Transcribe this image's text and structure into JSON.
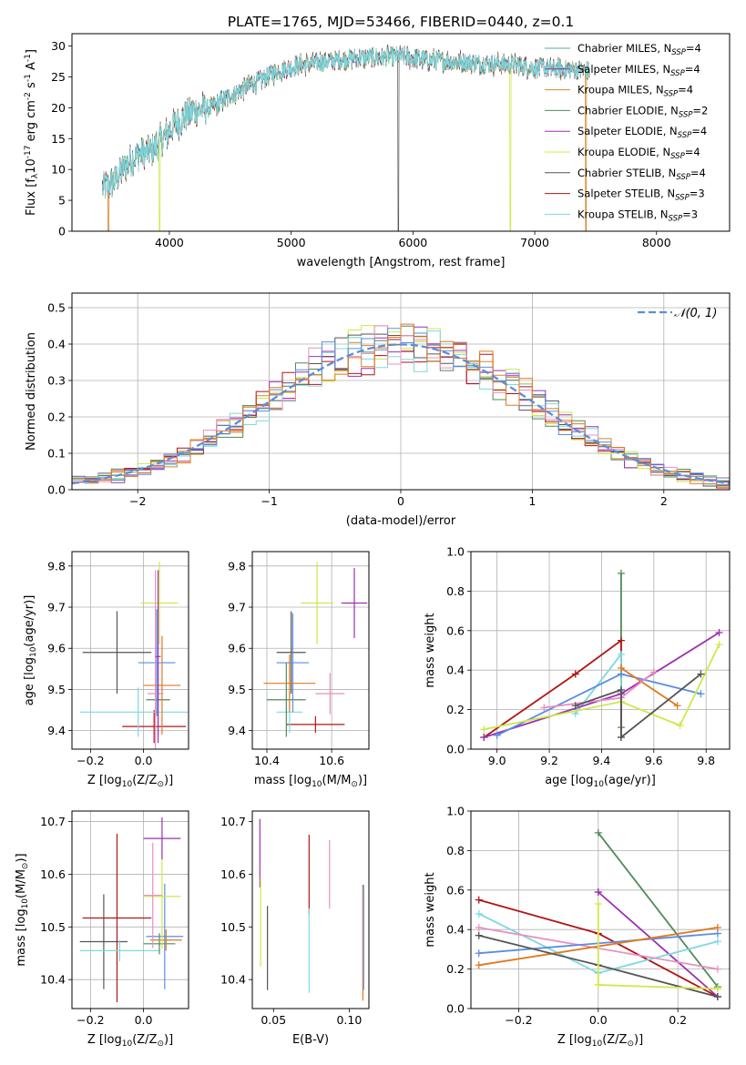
{
  "title": "PLATE=1765, MJD=53466, FIBERID=0440, z=0.1",
  "colors": {
    "Chabrier MILES": "#5fa89a",
    "Salpeter MILES": "#7d3c98",
    "Kroupa MILES": "#d4882a",
    "Chabrier ELODIE": "#4f8a5a",
    "Salpeter ELODIE": "#9b30b0",
    "Kroupa ELODIE": "#cde84a",
    "Chabrier STELIB": "#555555",
    "Salpeter STELIB": "#b01515",
    "Kroupa STELIB": "#7ed8e0",
    "extra_pink": "#e890c0",
    "extra_blue": "#5b8ee0",
    "extra_orange": "#e07820",
    "gauss": "#5b8ed6"
  },
  "chart_data": [
    {
      "id": "spectrum",
      "type": "line",
      "xlabel": "wavelength [Angstrom, rest frame]",
      "ylabel": "Flux [f$_\\lambda$10$^{-17}$ erg cm$^{-2}$ s$^{-1}$ A$^{-1}$]",
      "xlim": [
        3200,
        8600
      ],
      "ylim": [
        0,
        32
      ],
      "xticks": [
        "4000",
        "5000",
        "6000",
        "7000",
        "8000"
      ],
      "yticks": [
        "0",
        "5",
        "10",
        "15",
        "20",
        "25",
        "30"
      ],
      "legend": [
        {
          "label": "Chabrier MILES, N",
          "sub": "SSP",
          "n": "=4",
          "series": "Chabrier MILES"
        },
        {
          "label": "Salpeter MILES, N",
          "sub": "SSP",
          "n": "=4",
          "series": "Salpeter MILES"
        },
        {
          "label": "Kroupa MILES, N",
          "sub": "SSP",
          "n": "=4",
          "series": "Kroupa MILES"
        },
        {
          "label": "Chabrier ELODIE, N",
          "sub": "SSP",
          "n": "=2",
          "series": "Chabrier ELODIE"
        },
        {
          "label": "Salpeter ELODIE, N",
          "sub": "SSP",
          "n": "=4",
          "series": "Salpeter ELODIE"
        },
        {
          "label": "Kroupa ELODIE, N",
          "sub": "SSP",
          "n": "=4",
          "series": "Kroupa ELODIE"
        },
        {
          "label": "Chabrier STELIB, N",
          "sub": "SSP",
          "n": "=4",
          "series": "Chabrier STELIB"
        },
        {
          "label": "Salpeter STELIB, N",
          "sub": "SSP",
          "n": "=3",
          "series": "Salpeter STELIB"
        },
        {
          "label": "Kroupa STELIB, N",
          "sub": "SSP",
          "n": "=3",
          "series": "Kroupa STELIB"
        }
      ],
      "legend_position": "upper right",
      "continuum": [
        [
          3450,
          7
        ],
        [
          3550,
          8
        ],
        [
          3650,
          11
        ],
        [
          3750,
          12.5
        ],
        [
          3850,
          13
        ],
        [
          3950,
          15
        ],
        [
          4050,
          17.5
        ],
        [
          4200,
          19.5
        ],
        [
          4350,
          20
        ],
        [
          4500,
          22
        ],
        [
          4700,
          24
        ],
        [
          4900,
          26
        ],
        [
          5100,
          27
        ],
        [
          5300,
          27.5
        ],
        [
          5500,
          28
        ],
        [
          5700,
          28.2
        ],
        [
          5900,
          28.3
        ],
        [
          6100,
          27.8
        ],
        [
          6300,
          27.5
        ],
        [
          6500,
          27.3
        ],
        [
          6800,
          27
        ],
        [
          7000,
          26.5
        ],
        [
          7200,
          26.3
        ],
        [
          7450,
          26
        ]
      ],
      "observed_range": [
        3450,
        7450
      ],
      "glitches": [
        {
          "x": 3500,
          "series": "Kroupa MILES"
        },
        {
          "x": 3920,
          "series": "Kroupa ELODIE"
        },
        {
          "x": 5880,
          "series": "Chabrier STELIB"
        },
        {
          "x": 6800,
          "series": "Kroupa ELODIE"
        },
        {
          "x": 7420,
          "series": "Kroupa MILES"
        }
      ]
    },
    {
      "id": "residuals",
      "type": "step-histogram",
      "xlabel": "(data-model)/error",
      "ylabel": "Normed distribution",
      "xlim": [
        -2.5,
        2.5
      ],
      "ylim": [
        0,
        0.54
      ],
      "xticks": [
        "−2",
        "−1",
        "0",
        "1",
        "2"
      ],
      "yticks": [
        "0.0",
        "0.1",
        "0.2",
        "0.3",
        "0.4",
        "0.5"
      ],
      "grid": true,
      "legend": {
        "label": "𝒩(0, 1)",
        "position": "upper right"
      },
      "bin_width": 0.1,
      "max_value": 0.515
    },
    {
      "id": "age-vs-Z",
      "type": "errorbar",
      "xlabel": "Z [log$_{10}$(Z/Z$_\\odot$)]",
      "ylabel": "age  [log$_{10}$(age/yr)]",
      "xlim": [
        -0.27,
        0.17
      ],
      "ylim": [
        9.355,
        9.835
      ],
      "xticks": [
        "−0.2",
        "0.0"
      ],
      "yticks": [
        "9.4",
        "9.5",
        "9.6",
        "9.7",
        "9.8"
      ],
      "grid": true,
      "points": [
        {
          "x": 0.04,
          "xerr": 0.12,
          "y": 9.41,
          "yerr": 0.04,
          "c": "Salpeter STELIB"
        },
        {
          "x": -0.1,
          "xerr": 0.13,
          "y": 9.59,
          "yerr": 0.1,
          "c": "Chabrier STELIB"
        },
        {
          "x": -0.02,
          "xerr": 0.22,
          "y": 9.445,
          "yerr": 0.06,
          "c": "Kroupa STELIB"
        },
        {
          "x": 0.055,
          "xerr": 0.045,
          "y": 9.475,
          "yerr": 0.09,
          "c": "Chabrier ELODIE"
        },
        {
          "x": 0.07,
          "xerr": 0.07,
          "y": 9.51,
          "yerr": 0.12,
          "c": "extra_orange"
        },
        {
          "x": 0.05,
          "xerr": 0.07,
          "y": 9.565,
          "yerr": 0.13,
          "c": "extra_blue"
        },
        {
          "x": 0.06,
          "xerr": 0.07,
          "y": 9.71,
          "yerr": 0.1,
          "c": "Kroupa ELODIE"
        },
        {
          "x": 0.045,
          "xerr": 0.03,
          "y": 9.49,
          "yerr": 0.3,
          "c": "extra_pink"
        },
        {
          "x": 0.055,
          "xerr": 0.01,
          "y": 9.58,
          "yerr": 0.21,
          "c": "Salpeter ELODIE"
        }
      ]
    },
    {
      "id": "age-vs-mass",
      "type": "errorbar",
      "xlabel": "mass [log$_{10}$(M/M$_\\odot$)]",
      "ylabel": "",
      "xlim": [
        10.355,
        10.715
      ],
      "ylim": [
        9.355,
        9.835
      ],
      "xticks": [
        "10.4",
        "10.6"
      ],
      "yticks": [
        "9.4",
        "9.5",
        "9.6",
        "9.7",
        "9.8"
      ],
      "grid": true,
      "points": [
        {
          "x": 10.55,
          "xerr": 0.09,
          "y": 9.415,
          "yerr": 0.02,
          "c": "Salpeter STELIB"
        },
        {
          "x": 10.475,
          "xerr": 0.045,
          "y": 9.59,
          "yerr": 0.1,
          "c": "Chabrier STELIB"
        },
        {
          "x": 10.47,
          "xerr": 0.04,
          "y": 9.445,
          "yerr": 0.05,
          "c": "Kroupa STELIB"
        },
        {
          "x": 10.46,
          "xerr": 0.06,
          "y": 9.475,
          "yerr": 0.09,
          "c": "Chabrier ELODIE"
        },
        {
          "x": 10.47,
          "xerr": 0.08,
          "y": 9.515,
          "yerr": 0.07,
          "c": "extra_orange"
        },
        {
          "x": 10.48,
          "xerr": 0.05,
          "y": 9.565,
          "yerr": 0.12,
          "c": "extra_blue"
        },
        {
          "x": 10.555,
          "xerr": 0.05,
          "y": 9.71,
          "yerr": 0.1,
          "c": "Kroupa ELODIE"
        },
        {
          "x": 10.595,
          "xerr": 0.045,
          "y": 9.49,
          "yerr": 0.05,
          "c": "extra_pink"
        },
        {
          "x": 10.67,
          "xerr": 0.04,
          "y": 9.71,
          "yerr": 0.085,
          "c": "Salpeter ELODIE"
        }
      ]
    },
    {
      "id": "weight-vs-age",
      "type": "line",
      "xlabel": "age  [log$_{10}$(age/yr)]",
      "ylabel": "mass weight",
      "xlim": [
        8.9,
        9.89
      ],
      "ylim": [
        0,
        1
      ],
      "xticks": [
        "9.0",
        "9.2",
        "9.4",
        "9.6",
        "9.8"
      ],
      "yticks": [
        "0.0",
        "0.2",
        "0.4",
        "0.6",
        "0.8",
        "1.0"
      ],
      "grid": true,
      "series": [
        {
          "c": "Chabrier ELODIE",
          "x": [
            9.475,
            9.475
          ],
          "y": [
            0.89,
            0.11
          ]
        },
        {
          "c": "Salpeter STELIB",
          "x": [
            8.95,
            9.3,
            9.475,
            9.475
          ],
          "y": [
            0.06,
            0.38,
            0.55,
            0.06
          ]
        },
        {
          "c": "Kroupa STELIB",
          "x": [
            9.3,
            9.475,
            9.475
          ],
          "y": [
            0.18,
            0.48,
            0.29
          ]
        },
        {
          "c": "Salpeter ELODIE",
          "x": [
            8.95,
            9.475,
            9.85
          ],
          "y": [
            0.06,
            0.28,
            0.59
          ]
        },
        {
          "c": "extra_blue",
          "x": [
            9.0,
            9.475,
            9.78
          ],
          "y": [
            0.07,
            0.38,
            0.28
          ]
        },
        {
          "c": "extra_orange",
          "x": [
            9.475,
            9.69
          ],
          "y": [
            0.41,
            0.22
          ]
        },
        {
          "c": "extra_pink",
          "x": [
            9.18,
            9.475,
            9.6
          ],
          "y": [
            0.21,
            0.26,
            0.39
          ]
        },
        {
          "c": "Kroupa ELODIE",
          "x": [
            8.95,
            9.475,
            9.7,
            9.85
          ],
          "y": [
            0.1,
            0.24,
            0.12,
            0.53
          ]
        },
        {
          "c": "Chabrier STELIB",
          "x": [
            9.3,
            9.475,
            9.475,
            9.78
          ],
          "y": [
            0.22,
            0.3,
            0.06,
            0.38
          ]
        }
      ]
    },
    {
      "id": "mass-vs-Z",
      "type": "errorbar",
      "xlabel": "Z [log$_{10}$(Z/Z$_\\odot$)]",
      "ylabel": "mass [log$_{10}$(M/M$_\\odot$)]",
      "xlim": [
        -0.27,
        0.17
      ],
      "ylim": [
        10.345,
        10.72
      ],
      "xticks": [
        "−0.2",
        "0.0"
      ],
      "yticks": [
        "10.4",
        "10.5",
        "10.6",
        "10.7"
      ],
      "grid": true,
      "points": [
        {
          "x": -0.1,
          "xerr": 0.13,
          "y": 10.517,
          "yerr": 0.16,
          "c": "Salpeter STELIB"
        },
        {
          "x": -0.15,
          "xerr": 0.09,
          "y": 10.472,
          "yerr": 0.09,
          "c": "Chabrier STELIB"
        },
        {
          "x": -0.09,
          "xerr": 0.15,
          "y": 10.455,
          "yerr": 0.02,
          "c": "Kroupa STELIB"
        },
        {
          "x": 0.06,
          "xerr": 0.06,
          "y": 10.468,
          "yerr": 0.02,
          "c": "Chabrier ELODIE"
        },
        {
          "x": 0.085,
          "xerr": 0.06,
          "y": 10.475,
          "yerr": 0.02,
          "c": "extra_orange"
        },
        {
          "x": 0.08,
          "xerr": 0.07,
          "y": 10.482,
          "yerr": 0.1,
          "c": "extra_blue"
        },
        {
          "x": 0.07,
          "xerr": 0.07,
          "y": 10.558,
          "yerr": 0.1,
          "c": "Kroupa ELODIE"
        },
        {
          "x": 0.035,
          "xerr": 0.035,
          "y": 10.56,
          "yerr": 0.1,
          "c": "extra_pink"
        },
        {
          "x": 0.07,
          "xerr": 0.07,
          "y": 10.668,
          "yerr": 0.04,
          "c": "Salpeter ELODIE"
        }
      ]
    },
    {
      "id": "mass-vs-ebv",
      "type": "errorbar",
      "xlabel": "E(B-V)",
      "ylabel": "",
      "xlim": [
        0.036,
        0.113
      ],
      "ylim": [
        10.345,
        10.72
      ],
      "xticks": [
        "0.05",
        "0.10"
      ],
      "yticks": [
        "10.4",
        "10.5",
        "10.6",
        "10.7"
      ],
      "grid": false,
      "points": [
        {
          "x": 0.041,
          "y": 10.64,
          "yerr": 0.065,
          "c": "Salpeter ELODIE"
        },
        {
          "x": 0.0415,
          "y": 10.51,
          "yerr": 0.085,
          "c": "Kroupa ELODIE"
        },
        {
          "x": 0.046,
          "y": 10.46,
          "yerr": 0.08,
          "c": "Chabrier STELIB"
        },
        {
          "x": 0.0735,
          "y": 10.6,
          "yerr": 0.075,
          "c": "Salpeter STELIB"
        },
        {
          "x": 0.0735,
          "y": 10.455,
          "yerr": 0.08,
          "c": "Kroupa STELIB"
        },
        {
          "x": 0.087,
          "y": 10.6,
          "yerr": 0.065,
          "c": "extra_pink"
        },
        {
          "x": 0.109,
          "y": 10.47,
          "yerr": 0.11,
          "c": "extra_orange"
        },
        {
          "x": 0.1095,
          "y": 10.48,
          "yerr": 0.1,
          "c": "extra_blue"
        }
      ]
    },
    {
      "id": "weight-vs-Z",
      "type": "line",
      "xlabel": "Z [log$_{10}$(Z/Z$_\\odot$)]",
      "ylabel": "mass weight",
      "xlim": [
        -0.32,
        0.33
      ],
      "ylim": [
        0,
        1
      ],
      "xticks": [
        "−0.2",
        "0.0",
        "0.2"
      ],
      "yticks": [
        "0.0",
        "0.2",
        "0.4",
        "0.6",
        "0.8",
        "1.0"
      ],
      "grid": true,
      "series": [
        {
          "c": "Chabrier ELODIE",
          "x": [
            0,
            0.3
          ],
          "y": [
            0.89,
            0.11
          ]
        },
        {
          "c": "Salpeter STELIB",
          "x": [
            -0.3,
            0,
            0.3
          ],
          "y": [
            0.55,
            0.38,
            0.06
          ]
        },
        {
          "c": "Salpeter ELODIE",
          "x": [
            0,
            0,
            0.3
          ],
          "y": [
            0.59,
            0.59,
            0.06
          ]
        },
        {
          "c": "Kroupa STELIB",
          "x": [
            -0.3,
            0,
            0.3
          ],
          "y": [
            0.48,
            0.18,
            0.34
          ]
        },
        {
          "c": "extra_pink",
          "x": [
            -0.3,
            0.3
          ],
          "y": [
            0.41,
            0.2
          ]
        },
        {
          "c": "extra_blue",
          "x": [
            -0.3,
            0.3
          ],
          "y": [
            0.28,
            0.38
          ]
        },
        {
          "c": "extra_orange",
          "x": [
            -0.3,
            0.3
          ],
          "y": [
            0.22,
            0.41
          ]
        },
        {
          "c": "Chabrier STELIB",
          "x": [
            -0.3,
            0,
            0.3
          ],
          "y": [
            0.37,
            0.22,
            0.06
          ]
        },
        {
          "c": "Kroupa ELODIE",
          "x": [
            0,
            0,
            0.3
          ],
          "y": [
            0.53,
            0.12,
            0.1
          ]
        }
      ]
    }
  ]
}
